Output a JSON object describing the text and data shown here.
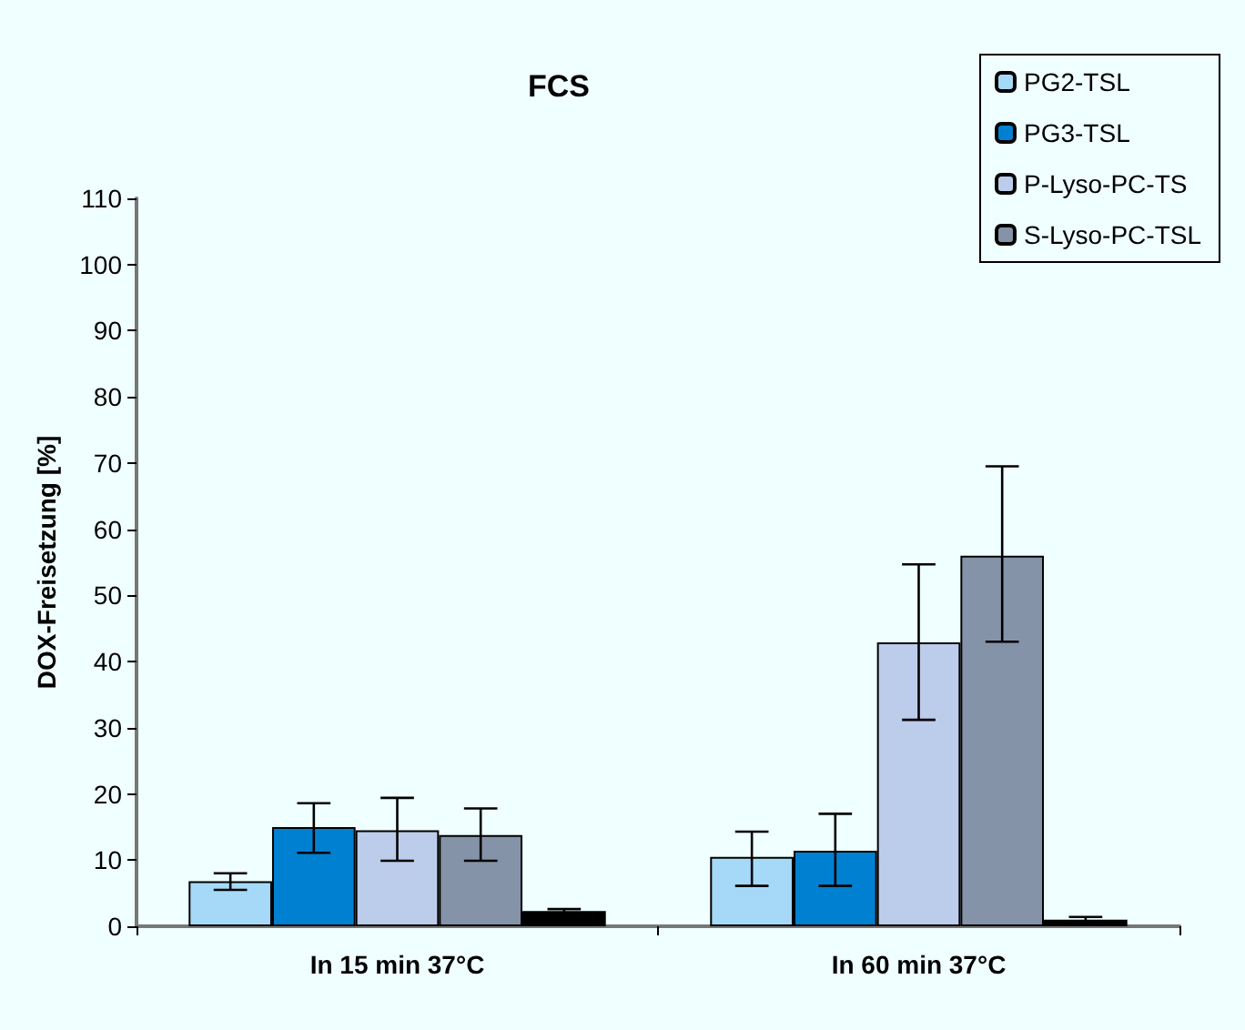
{
  "chart_data": {
    "type": "bar",
    "title": "FCS",
    "ylabel": "DOX-Freisetzung [%]",
    "categories": [
      "In 15 min 37°C",
      "In 60 min 37°C"
    ],
    "series": [
      {
        "name": "PG2-TSL",
        "color": "#a6d8f8",
        "values": [
          6.8,
          10.5
        ],
        "errors": [
          [
            5.5,
            8.0
          ],
          [
            6.1,
            14.3
          ]
        ]
      },
      {
        "name": "PG3-TSL",
        "color": "#0080d0",
        "values": [
          15.0,
          11.4
        ],
        "errors": [
          [
            11.1,
            18.6
          ],
          [
            6.1,
            17.0
          ]
        ]
      },
      {
        "name": "P-Lyso-PC-TS",
        "color": "#bccdeb",
        "values": [
          14.5,
          42.9
        ],
        "errors": [
          [
            9.9,
            19.4
          ],
          [
            31.2,
            54.7
          ]
        ]
      },
      {
        "name": "S-Lyso-PC-TSL",
        "color": "#8593a8",
        "values": [
          13.8,
          56.0
        ],
        "errors": [
          [
            9.9,
            17.8
          ],
          [
            43.0,
            69.5
          ]
        ]
      },
      {
        "color": "#000000",
        "values": [
          2.3,
          1.0
        ],
        "errors": [
          [
            2.0,
            2.6
          ],
          [
            0.6,
            1.4
          ]
        ]
      }
    ],
    "ylim": [
      0,
      110
    ],
    "yticks": [
      0,
      10,
      20,
      30,
      40,
      50,
      60,
      70,
      80,
      90,
      100,
      110
    ],
    "grid": false,
    "legend": "top right"
  }
}
